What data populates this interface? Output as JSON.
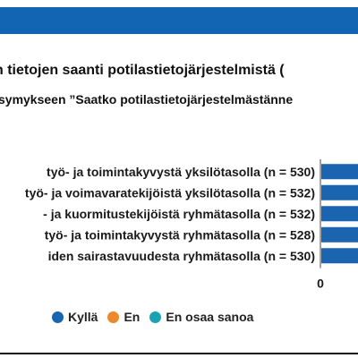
{
  "header": {
    "title": "n tietojen saanti potilastietojärjestelmistä (",
    "subtitle": "symykseen ”Saatko potilastietojärjestelmästänne"
  },
  "colors": {
    "banner": "#1265b3",
    "kylla": "#1a64b0",
    "en": "#ec8a2b",
    "en_osaa_sanoa": "#1aa3b3"
  },
  "chart_data": {
    "type": "bar",
    "orientation": "horizontal",
    "stacked": true,
    "categories": [
      "työ- ja toimintakyvystä yksilötasolla (n = 530)",
      "työ- ja voimavaratekijöistä yksilötasolla (n = 532)",
      "- ja kuormitustekijöistä ryhmätasolla (n = 532)",
      "työ- ja toimintakyvystä ryhmätasolla (n = 528)",
      "iden sairastavuudesta ryhmätasolla (n = 530)"
    ],
    "xticks": [
      "0",
      "20"
    ],
    "xlim": [
      0,
      100
    ],
    "series": [
      {
        "name": "Kyllä",
        "color": "#1a64b0",
        "values": [
          null,
          null,
          null,
          null,
          null
        ]
      },
      {
        "name": "En",
        "color": "#ec8a2b",
        "values": [
          null,
          null,
          null,
          null,
          null
        ]
      },
      {
        "name": "En osaa sanoa",
        "color": "#1aa3b3",
        "values": [
          null,
          null,
          null,
          null,
          null
        ]
      }
    ],
    "legend_position": "bottom"
  }
}
